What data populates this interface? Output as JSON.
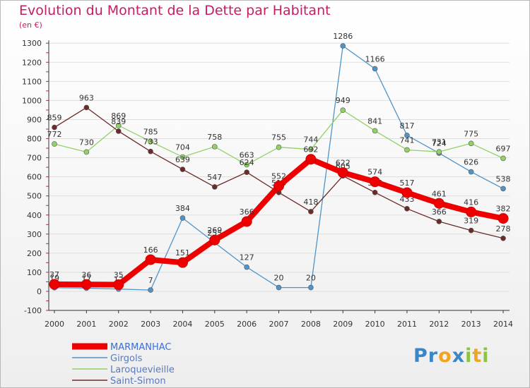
{
  "title": "Evolution du Montant de la Dette par Habitant",
  "subtitle": "(en €)",
  "logo": {
    "text": "Proxiti",
    "letters": [
      {
        "ch": "P",
        "color": "#3d86c6"
      },
      {
        "ch": "r",
        "color": "#3d86c6"
      },
      {
        "ch": "o",
        "color": "#f1a41f"
      },
      {
        "ch": "x",
        "color": "#3d86c6"
      },
      {
        "ch": "i",
        "color": "#8bc53f"
      },
      {
        "ch": "t",
        "color": "#f1a41f"
      },
      {
        "ch": "i",
        "color": "#8bc53f"
      }
    ]
  },
  "chart_data": {
    "type": "line",
    "title": "Evolution du Montant de la Dette par Habitant",
    "subtitle": "(en €)",
    "x": [
      "2000",
      "2001",
      "2002",
      "2003",
      "2004",
      "2005",
      "2006",
      "2007",
      "2008",
      "2009",
      "2010",
      "2011",
      "2012",
      "2013",
      "2014"
    ],
    "ylim": [
      -100,
      1300
    ],
    "yticks": [
      -100,
      0,
      100,
      200,
      300,
      400,
      500,
      600,
      700,
      800,
      900,
      1000,
      1100,
      1200,
      1300
    ],
    "grid": true,
    "legend_position": "bottom-left",
    "series": [
      {
        "name": "MARMANHAC",
        "color": "#ee0000",
        "emphasis": true,
        "values": [
          37,
          36,
          35,
          166,
          151,
          269,
          366,
          552,
          692,
          622,
          574,
          517,
          461,
          416,
          382
        ]
      },
      {
        "name": "Girgols",
        "color": "#4f94c8",
        "emphasis": false,
        "values": [
          19,
          17,
          12,
          7,
          384,
          255,
          127,
          20,
          20,
          1286,
          1166,
          817,
          724,
          626,
          538
        ]
      },
      {
        "name": "Laroquevieille",
        "color": "#93d166",
        "emphasis": false,
        "values": [
          772,
          730,
          869,
          785,
          704,
          758,
          663,
          755,
          744,
          949,
          841,
          741,
          731,
          775,
          697
        ]
      },
      {
        "name": "Saint-Simon",
        "color": "#6b2a2a",
        "emphasis": false,
        "values": [
          859,
          963,
          839,
          733,
          639,
          547,
          624,
          518,
          418,
          605,
          518,
          433,
          366,
          319,
          278
        ]
      }
    ]
  }
}
